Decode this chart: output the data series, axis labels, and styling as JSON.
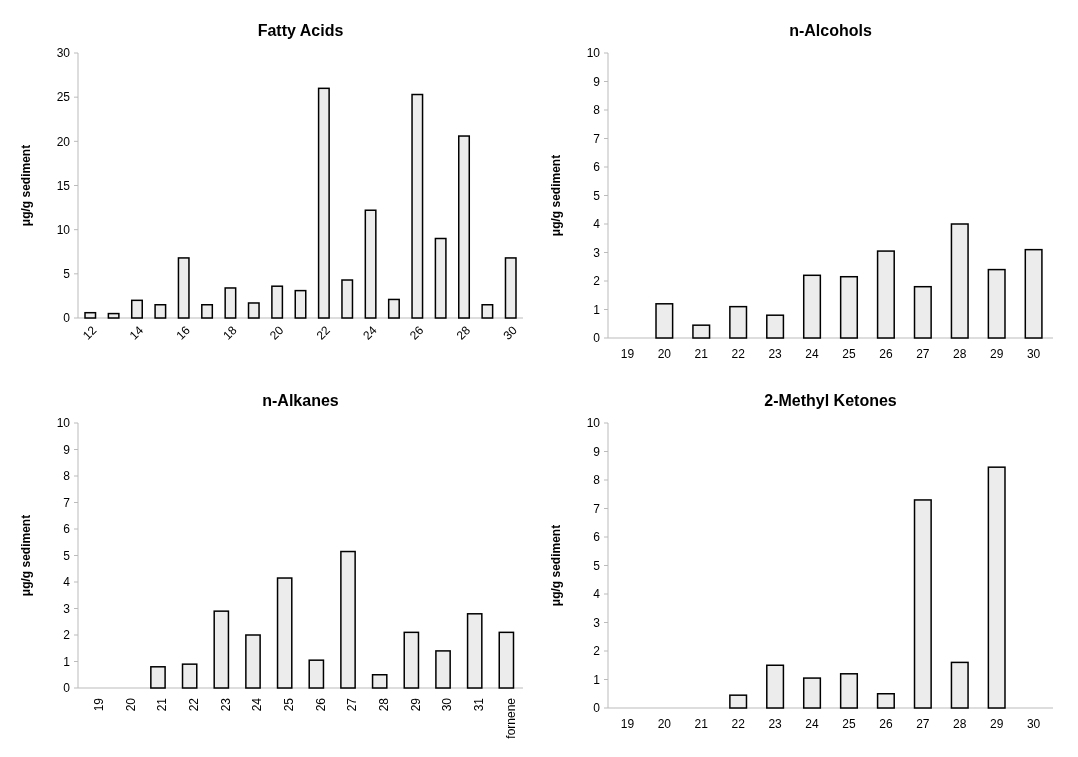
{
  "chart_data": [
    {
      "type": "bar",
      "title": "Fatty Acids",
      "ylabel": "μg/g sediment",
      "categories": [
        "12",
        null,
        "14",
        null,
        "16",
        null,
        "18",
        null,
        "20",
        null,
        "22",
        null,
        "24",
        null,
        "26",
        null,
        "28",
        null,
        "30"
      ],
      "values": [
        0.6,
        0.5,
        2.0,
        1.5,
        6.8,
        1.5,
        3.4,
        1.7,
        3.6,
        3.1,
        26,
        4.3,
        12.2,
        2.1,
        25.3,
        9.0,
        20.6,
        1.5,
        6.8
      ],
      "color": "#ececec",
      "ylim": [
        0,
        30
      ],
      "yticks": [
        0,
        5,
        10,
        15,
        20,
        25,
        30
      ],
      "grid": false
    },
    {
      "type": "bar",
      "title": "n-Alcohols",
      "ylabel": "μg/g sediment",
      "categories": [
        "19",
        "20",
        "21",
        "22",
        "23",
        "24",
        "25",
        "26",
        "27",
        "28",
        "29",
        "30"
      ],
      "values": [
        0,
        1.2,
        0.45,
        1.1,
        0.8,
        2.2,
        2.15,
        3.05,
        1.8,
        4.0,
        2.4,
        3.1
      ],
      "color": "#ececec",
      "ylim": [
        0,
        10
      ],
      "yticks": [
        0,
        1,
        2,
        3,
        4,
        5,
        6,
        7,
        8,
        9,
        10
      ],
      "grid": false
    },
    {
      "type": "bar",
      "title": "n-Alkanes",
      "ylabel": "μg/g sediment",
      "categories": [
        "19",
        "20",
        "21",
        "22",
        "23",
        "24",
        "25",
        "26",
        "27",
        "28",
        "29",
        "30",
        "31",
        "fornene"
      ],
      "values": [
        0,
        0,
        0.8,
        0.9,
        2.9,
        2.0,
        4.15,
        1.05,
        5.15,
        0.5,
        2.1,
        1.4,
        2.8,
        2.1
      ],
      "color": "#ececec",
      "ylim": [
        0,
        10
      ],
      "yticks": [
        0,
        1,
        2,
        3,
        4,
        5,
        6,
        7,
        8,
        9,
        10
      ],
      "grid": false
    },
    {
      "type": "bar",
      "title": "2-Methyl Ketones",
      "ylabel": "μg/g sediment",
      "categories": [
        "19",
        "20",
        "21",
        "22",
        "23",
        "24",
        "25",
        "26",
        "27",
        "28",
        "29",
        "30"
      ],
      "values": [
        0,
        0,
        0,
        0.45,
        1.5,
        1.05,
        1.2,
        0.5,
        7.3,
        1.6,
        8.45,
        0
      ],
      "color": "#ececec",
      "ylim": [
        0,
        10
      ],
      "yticks": [
        0,
        1,
        2,
        3,
        4,
        5,
        6,
        7,
        8,
        9,
        10
      ],
      "grid": false
    }
  ]
}
